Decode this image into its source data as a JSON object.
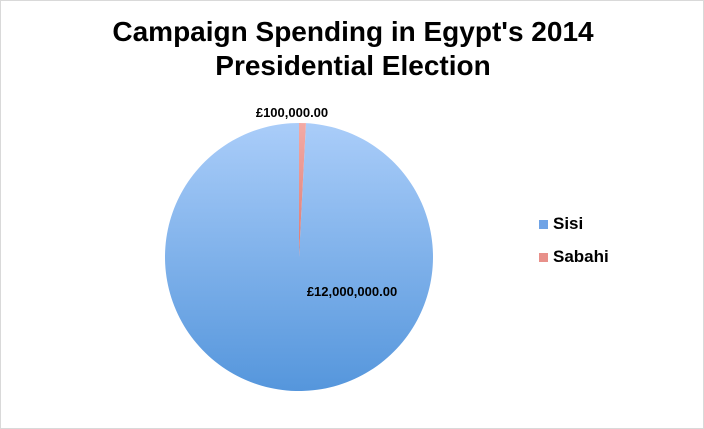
{
  "chart_data": {
    "type": "pie",
    "title": "Campaign Spending in Egypt's 2014 Presidential Election",
    "title_lines": [
      "Campaign Spending in Egypt's 2014",
      "Presidential Election"
    ],
    "categories": [
      "Sisi",
      "Sabahi"
    ],
    "values": [
      12000000,
      100000
    ],
    "data_labels": [
      "£12,000,000.00",
      "£100,000.00"
    ],
    "colors": [
      "#6fa3e6",
      "#e8908a"
    ],
    "legend_position": "right"
  }
}
